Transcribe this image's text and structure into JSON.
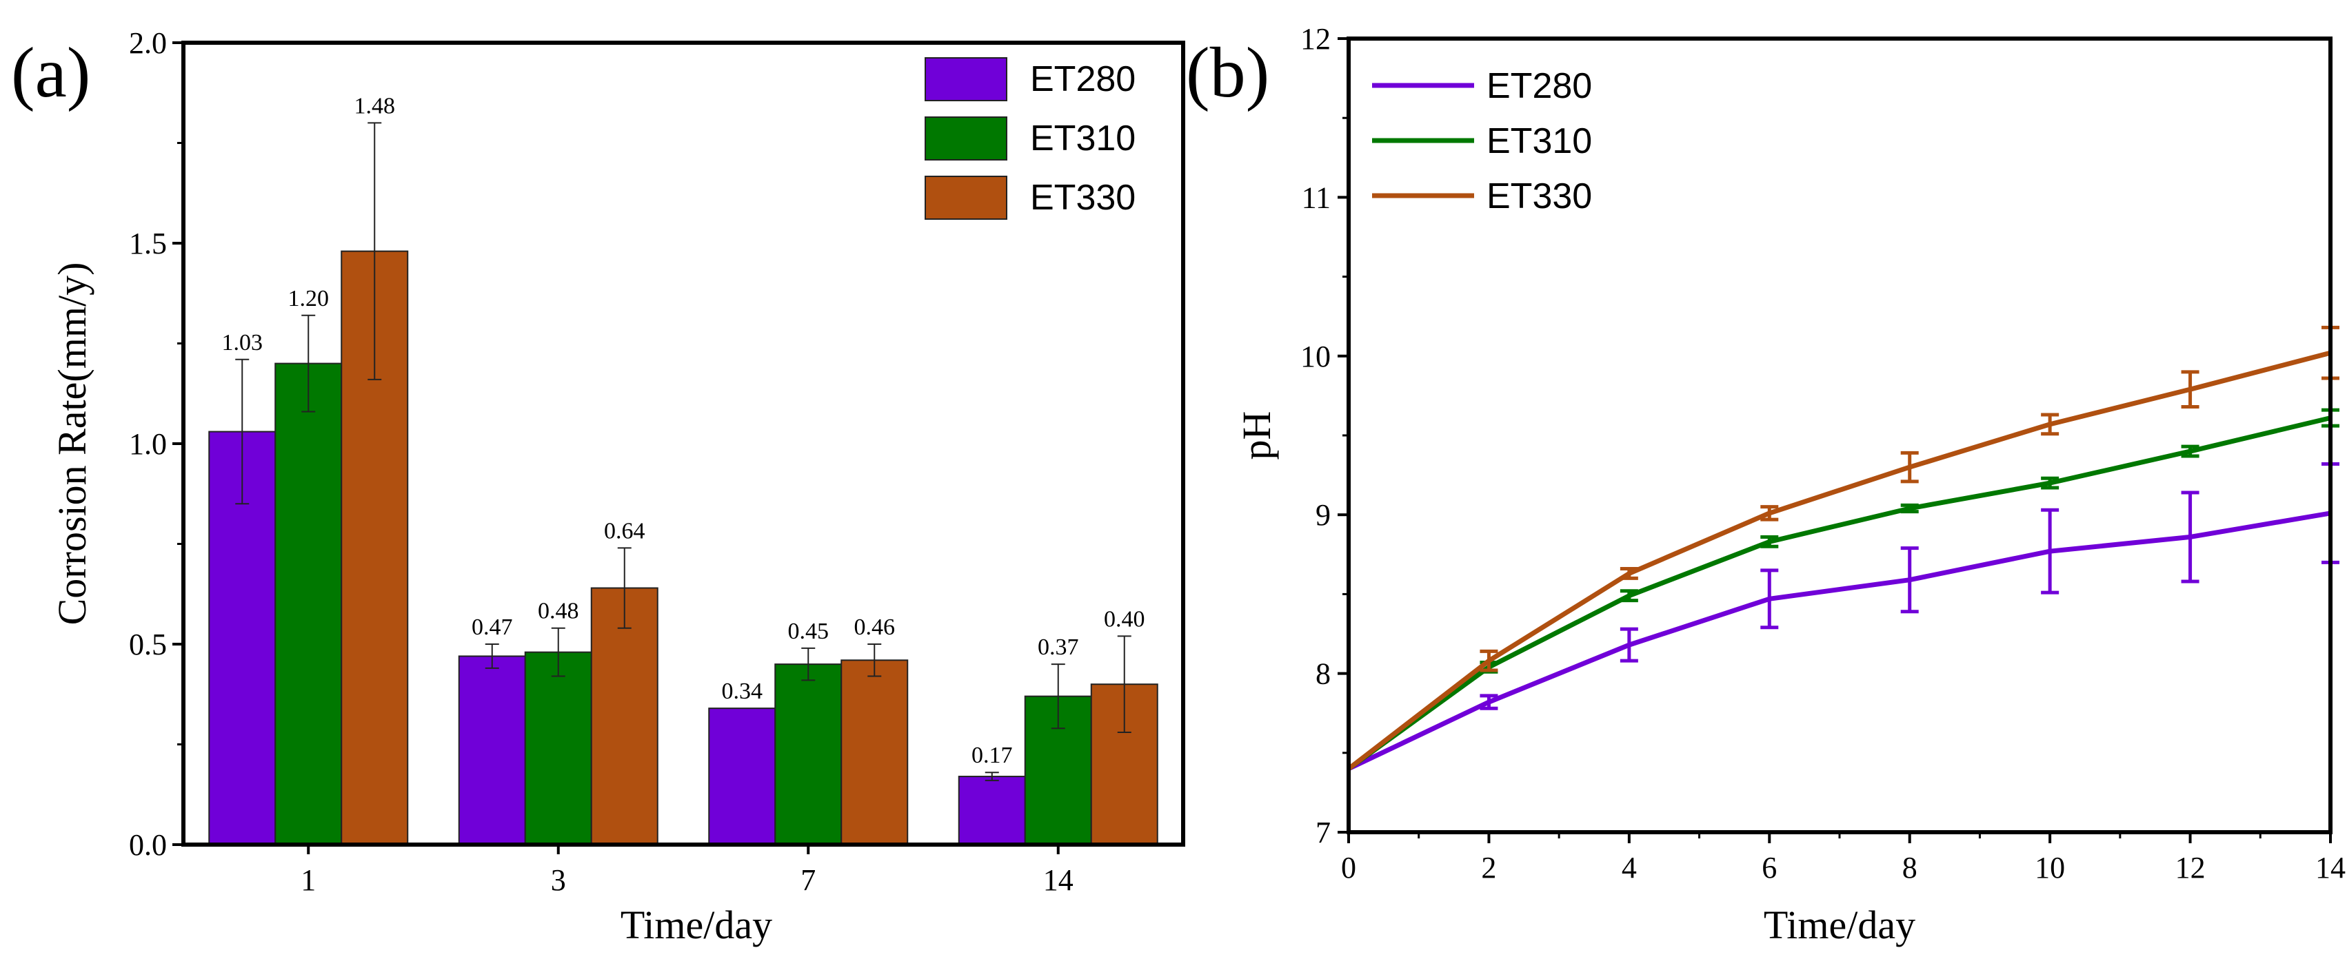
{
  "chart_data": [
    {
      "panel": "(a)",
      "type": "bar",
      "categories": [
        "1",
        "3",
        "7",
        "14"
      ],
      "series": [
        {
          "name": "ET280",
          "color": "#7000D8",
          "values": [
            1.03,
            0.47,
            0.34,
            0.17
          ],
          "errors": [
            0.18,
            0.03,
            0.0,
            0.01
          ],
          "labels": [
            "1.03",
            "0.47",
            "0.34",
            "0.17"
          ]
        },
        {
          "name": "ET310",
          "color": "#007800",
          "values": [
            1.2,
            0.48,
            0.45,
            0.37
          ],
          "errors": [
            0.12,
            0.06,
            0.04,
            0.08
          ],
          "labels": [
            "1.20",
            "0.48",
            "0.45",
            "0.37"
          ]
        },
        {
          "name": "ET330",
          "color": "#B05010",
          "values": [
            1.48,
            0.64,
            0.46,
            0.4
          ],
          "errors": [
            0.32,
            0.1,
            0.04,
            0.12
          ],
          "labels": [
            "1.48",
            "0.64",
            "0.46",
            "0.40"
          ]
        }
      ],
      "xlabel": "Time/day",
      "ylabel": "Corrosion Rate(mm/y)",
      "ylim": [
        0,
        2.0
      ],
      "yticks": [
        "0.0",
        "0.5",
        "1.0",
        "1.5",
        "2.0"
      ],
      "legend": "top-right"
    },
    {
      "panel": "(b)",
      "type": "line",
      "x": [
        0,
        2,
        4,
        6,
        8,
        10,
        12,
        14
      ],
      "series": [
        {
          "name": "ET280",
          "color": "#7000D8",
          "values": [
            7.4,
            7.82,
            8.18,
            8.47,
            8.59,
            8.77,
            8.86,
            9.01
          ],
          "errors": [
            0,
            0.04,
            0.1,
            0.18,
            0.2,
            0.26,
            0.28,
            0.31
          ]
        },
        {
          "name": "ET310",
          "color": "#007800",
          "values": [
            7.4,
            8.04,
            8.49,
            8.83,
            9.04,
            9.2,
            9.4,
            9.61
          ],
          "errors": [
            0,
            0.03,
            0.03,
            0.03,
            0.02,
            0.03,
            0.03,
            0.05
          ]
        },
        {
          "name": "ET330",
          "color": "#B05010",
          "values": [
            7.4,
            8.08,
            8.63,
            9.01,
            9.3,
            9.57,
            9.79,
            10.02
          ],
          "errors": [
            0,
            0.06,
            0.03,
            0.04,
            0.09,
            0.06,
            0.11,
            0.16
          ]
        }
      ],
      "xlabel": "Time/day",
      "ylabel": "pH",
      "xlim": [
        0,
        14
      ],
      "ylim": [
        7,
        12
      ],
      "xticks": [
        "0",
        "2",
        "4",
        "6",
        "8",
        "10",
        "12",
        "14"
      ],
      "yticks": [
        "7",
        "8",
        "9",
        "10",
        "11",
        "12"
      ],
      "legend": "top-left"
    }
  ]
}
